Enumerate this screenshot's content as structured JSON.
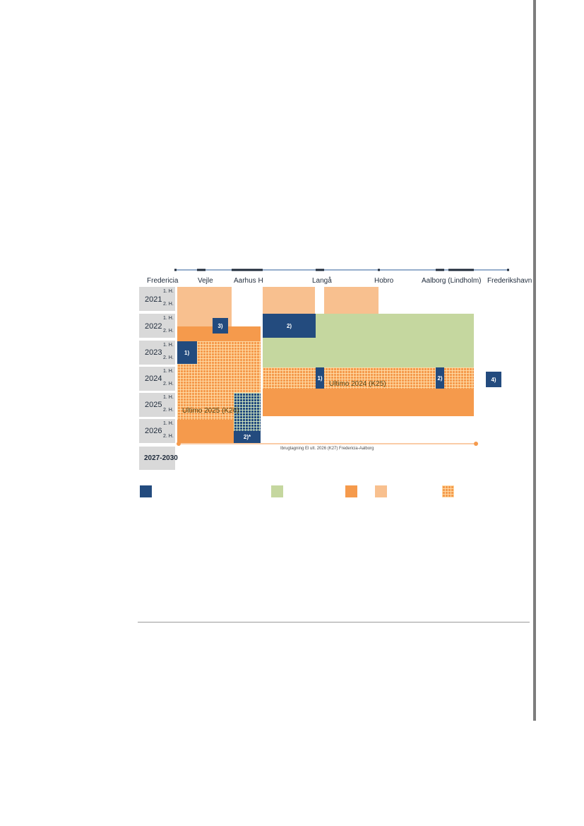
{
  "stations": [
    "Fredericia",
    "Vejle",
    "Aarhus H",
    "Langå",
    "Hobro",
    "Aalborg (Lindholm)",
    "Frederikshavn"
  ],
  "years": [
    "2021",
    "2022",
    "2023",
    "2024",
    "2025",
    "2026",
    "2027-2030"
  ],
  "half_labels": [
    "1. H.",
    "2. H."
  ],
  "markers": {
    "m3": "3)",
    "m2_top": "2)",
    "m1_left": "1)",
    "m1_mid": "1)",
    "m2_right": "2)",
    "m4": "4)",
    "m2_star": "2)*"
  },
  "annotations": {
    "ultimo_2024": "Ultimo 2024 (K25)",
    "ultimo_2025": "Ultimo 2025 (K26)",
    "ibrugtagning": "Ibrugtagning El ult. 2026 (K27) Fredericia-Aalborg"
  },
  "colors": {
    "navy": "#234b7e",
    "green": "#c5d79f",
    "orange": "#f59a4c",
    "light_orange": "#f8c08f",
    "grey": "#d9d9d9"
  },
  "legend": [
    "navy-swatch",
    "green-swatch",
    "orange-swatch",
    "light-orange-swatch",
    "grid-swatch"
  ]
}
